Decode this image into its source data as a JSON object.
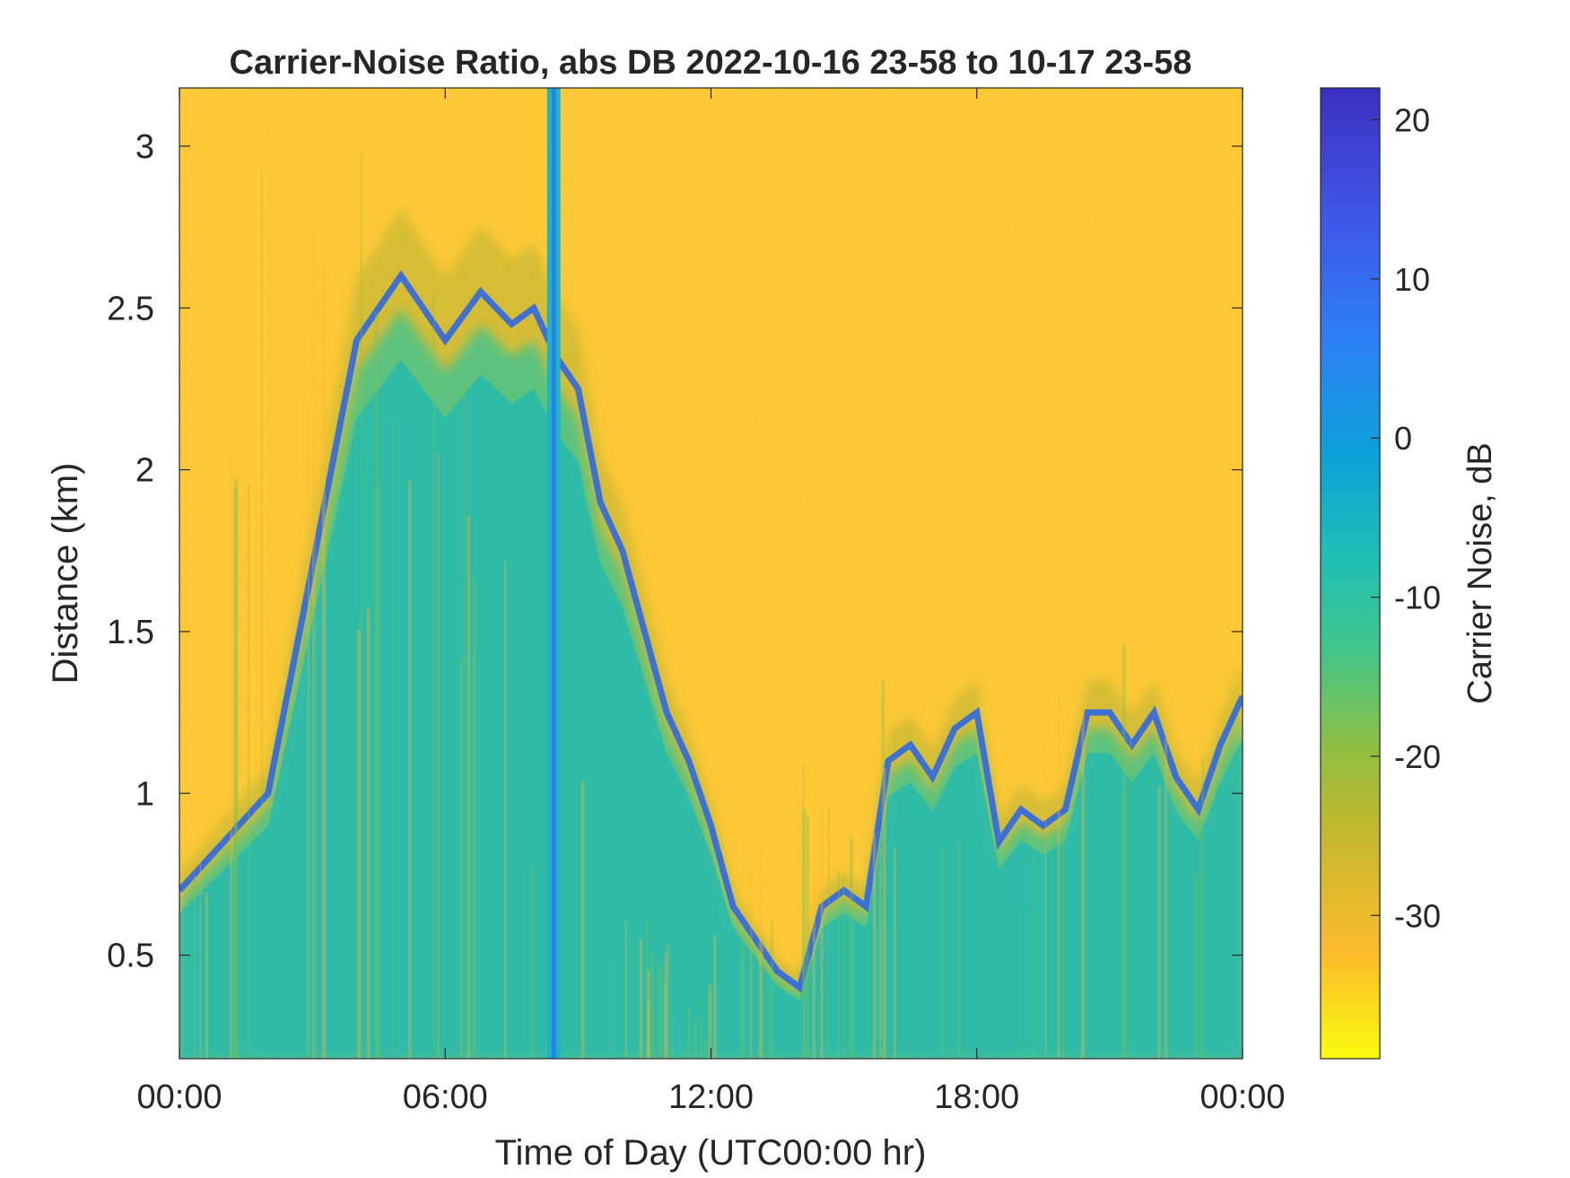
{
  "chart_data": {
    "type": "heatmap",
    "title": "Carrier-Noise Ratio, abs DB 2022-10-16 23-58 to 10-17 23-58",
    "xlabel": "Time of Day (UTC00:00 hr)",
    "ylabel": "Distance (km)",
    "xlim": [
      0,
      24
    ],
    "ylim": [
      0.18,
      3.18
    ],
    "x_ticks": [
      0,
      6,
      12,
      18,
      24
    ],
    "x_tick_labels": [
      "00:00",
      "06:00",
      "12:00",
      "18:00",
      "00:00"
    ],
    "y_ticks": [
      0.5,
      1,
      1.5,
      2,
      2.5,
      3
    ],
    "y_tick_labels": [
      "0.5",
      "1",
      "1.5",
      "2",
      "2.5",
      "3"
    ],
    "colorbar": {
      "label": "Carrier Noise, dB",
      "limits": [
        -39,
        22
      ],
      "ticks": [
        20,
        10,
        0,
        -10,
        -20,
        -30
      ],
      "tick_labels": [
        "20",
        "10",
        "0",
        "-10",
        "-20",
        "-30"
      ],
      "colormap": [
        "#f9fb0e",
        "#fcbb2b",
        "#c1b82e",
        "#8fbf42",
        "#42c68a",
        "#1dbfb7",
        "#0ba2d8",
        "#2d80f5",
        "#3e59ea",
        "#3c2fc0"
      ]
    },
    "boundary_layer_top_km": {
      "x": [
        0,
        2,
        4,
        5,
        6,
        6.8,
        7.5,
        8,
        8.5,
        9,
        9.5,
        10,
        10.5,
        11,
        11.5,
        12,
        12.5,
        13,
        13.5,
        14,
        14.5,
        15,
        15.5,
        16,
        16.5,
        17,
        17.5,
        18,
        18.5,
        19,
        19.5,
        20,
        20.5,
        21,
        21.5,
        22,
        22.5,
        23,
        23.5,
        24
      ],
      "y": [
        0.7,
        1.0,
        2.4,
        2.6,
        2.4,
        2.55,
        2.45,
        2.5,
        2.35,
        2.25,
        1.9,
        1.75,
        1.5,
        1.25,
        1.1,
        0.9,
        0.65,
        0.55,
        0.45,
        0.4,
        0.65,
        0.7,
        0.65,
        1.1,
        1.15,
        1.05,
        1.2,
        1.25,
        0.85,
        0.95,
        0.9,
        0.95,
        1.25,
        1.25,
        1.15,
        1.25,
        1.05,
        0.95,
        1.15,
        1.3
      ]
    },
    "strong_echo_column": {
      "x_start": 8.3,
      "x_end": 8.6
    },
    "grid": false,
    "legend": "colorbar-right"
  }
}
